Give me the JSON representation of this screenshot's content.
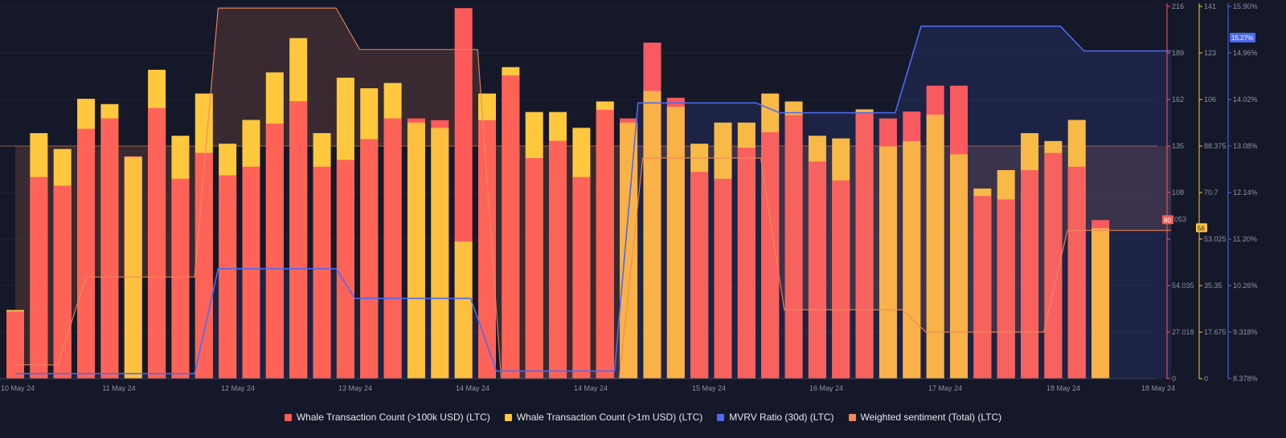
{
  "chart_data": {
    "type": "bar",
    "x_ticks": [
      "10 May 24",
      "11 May 24",
      "12 May 24",
      "13 May 24",
      "14 May 24",
      "14 May 24",
      "15 May 24",
      "16 May 24",
      "17 May 24",
      "18 May 24",
      "18 May 24"
    ],
    "axes": {
      "red": {
        "ticks": [
          "216",
          "189",
          "162",
          "135",
          "108",
          "",
          "54.035",
          "27.018",
          "0"
        ],
        "range": [
          0,
          216
        ],
        "color": "#ff5a5a"
      },
      "yellow": {
        "ticks": [
          "141",
          "123",
          "106",
          "88.375",
          "70.7",
          "53.025",
          "35.35",
          "17.675",
          "0"
        ],
        "range": [
          0,
          141
        ],
        "color": "#ffc83d"
      },
      "mvrv": {
        "ticks": [
          "15.90%",
          "14.96%",
          "14.02%",
          "13.08%",
          "12.14%",
          "11.20%",
          "10.26%",
          "9.318%",
          "8.378%"
        ],
        "range": [
          8.378,
          15.9
        ],
        "color": "#4d6af0"
      }
    },
    "series": [
      {
        "name": "Whale Transaction Count (>100k USD) (LTC)",
        "axis": "red",
        "color": "#ff5a5a",
        "values": [
          39,
          117,
          112,
          145,
          151,
          129,
          157,
          116,
          131,
          118,
          123,
          148,
          161,
          123,
          127,
          139,
          151,
          151,
          150,
          215,
          150,
          176,
          128,
          138,
          117,
          156,
          151,
          195,
          163,
          120,
          116,
          134,
          143,
          153,
          126,
          115,
          154,
          151,
          155,
          170,
          170,
          106,
          104,
          121,
          131,
          123,
          92
        ]
      },
      {
        "name": "Whale Transaction Count (>1m USD) (LTC)",
        "axis": "yellow",
        "color": "#ffc83d",
        "values": [
          26,
          93,
          87,
          106,
          104,
          84,
          117,
          92,
          108,
          89,
          98,
          116,
          129,
          93,
          114,
          110,
          112,
          97,
          95,
          52,
          108,
          118,
          101,
          101,
          95,
          105,
          97,
          109,
          103,
          89,
          97,
          97,
          108,
          105,
          92,
          91,
          102,
          88,
          90,
          100,
          85,
          72,
          79,
          93,
          90,
          98,
          57
        ]
      },
      {
        "name": "MVRV Ratio (30d) (LTC)",
        "axis": "mvrv",
        "color": "#4d6af0",
        "points": [
          [
            0,
            8.48
          ],
          [
            7.6,
            8.48
          ],
          [
            8.6,
            10.6
          ],
          [
            13.6,
            10.6
          ],
          [
            14.4,
            10.0
          ],
          [
            19.3,
            10.0
          ],
          [
            20.4,
            8.53
          ],
          [
            25.4,
            8.53
          ],
          [
            26.4,
            13.95
          ],
          [
            31.4,
            13.95
          ],
          [
            32.4,
            13.75
          ],
          [
            37.3,
            13.75
          ],
          [
            38.4,
            15.5
          ],
          [
            44.3,
            15.5
          ],
          [
            45.3,
            15.0
          ],
          [
            49,
            15.0
          ]
        ]
      },
      {
        "name": "Weighted sentiment (Total) (LTC)",
        "axis": "red",
        "color": "#f08a5d",
        "points": [
          [
            0,
            8
          ],
          [
            1.8,
            8
          ],
          [
            3,
            59
          ],
          [
            7.6,
            59
          ],
          [
            8.6,
            215
          ],
          [
            13.6,
            215
          ],
          [
            14.6,
            191
          ],
          [
            19.6,
            191
          ],
          [
            20.6,
            0
          ],
          [
            25.6,
            0
          ],
          [
            26.6,
            128
          ],
          [
            31.6,
            128
          ],
          [
            32.6,
            40
          ],
          [
            37.6,
            40
          ],
          [
            38.6,
            27
          ],
          [
            43.6,
            27
          ],
          [
            44.6,
            86
          ],
          [
            49,
            86
          ]
        ]
      }
    ],
    "badges": {
      "red_value": "80",
      "red_partial": "053",
      "yellow_value": "56",
      "mvrv_value": "15.27%"
    }
  },
  "legend": {
    "items": [
      {
        "label": "Whale Transaction Count (>100k USD) (LTC)",
        "color": "#ff5a5a"
      },
      {
        "label": "Whale Transaction Count (>1m USD) (LTC)",
        "color": "#ffc83d"
      },
      {
        "label": "MVRV Ratio (30d) (LTC)",
        "color": "#4d6af0"
      },
      {
        "label": "Weighted sentiment (Total) (LTC)",
        "color": "#f08a5d"
      }
    ]
  }
}
